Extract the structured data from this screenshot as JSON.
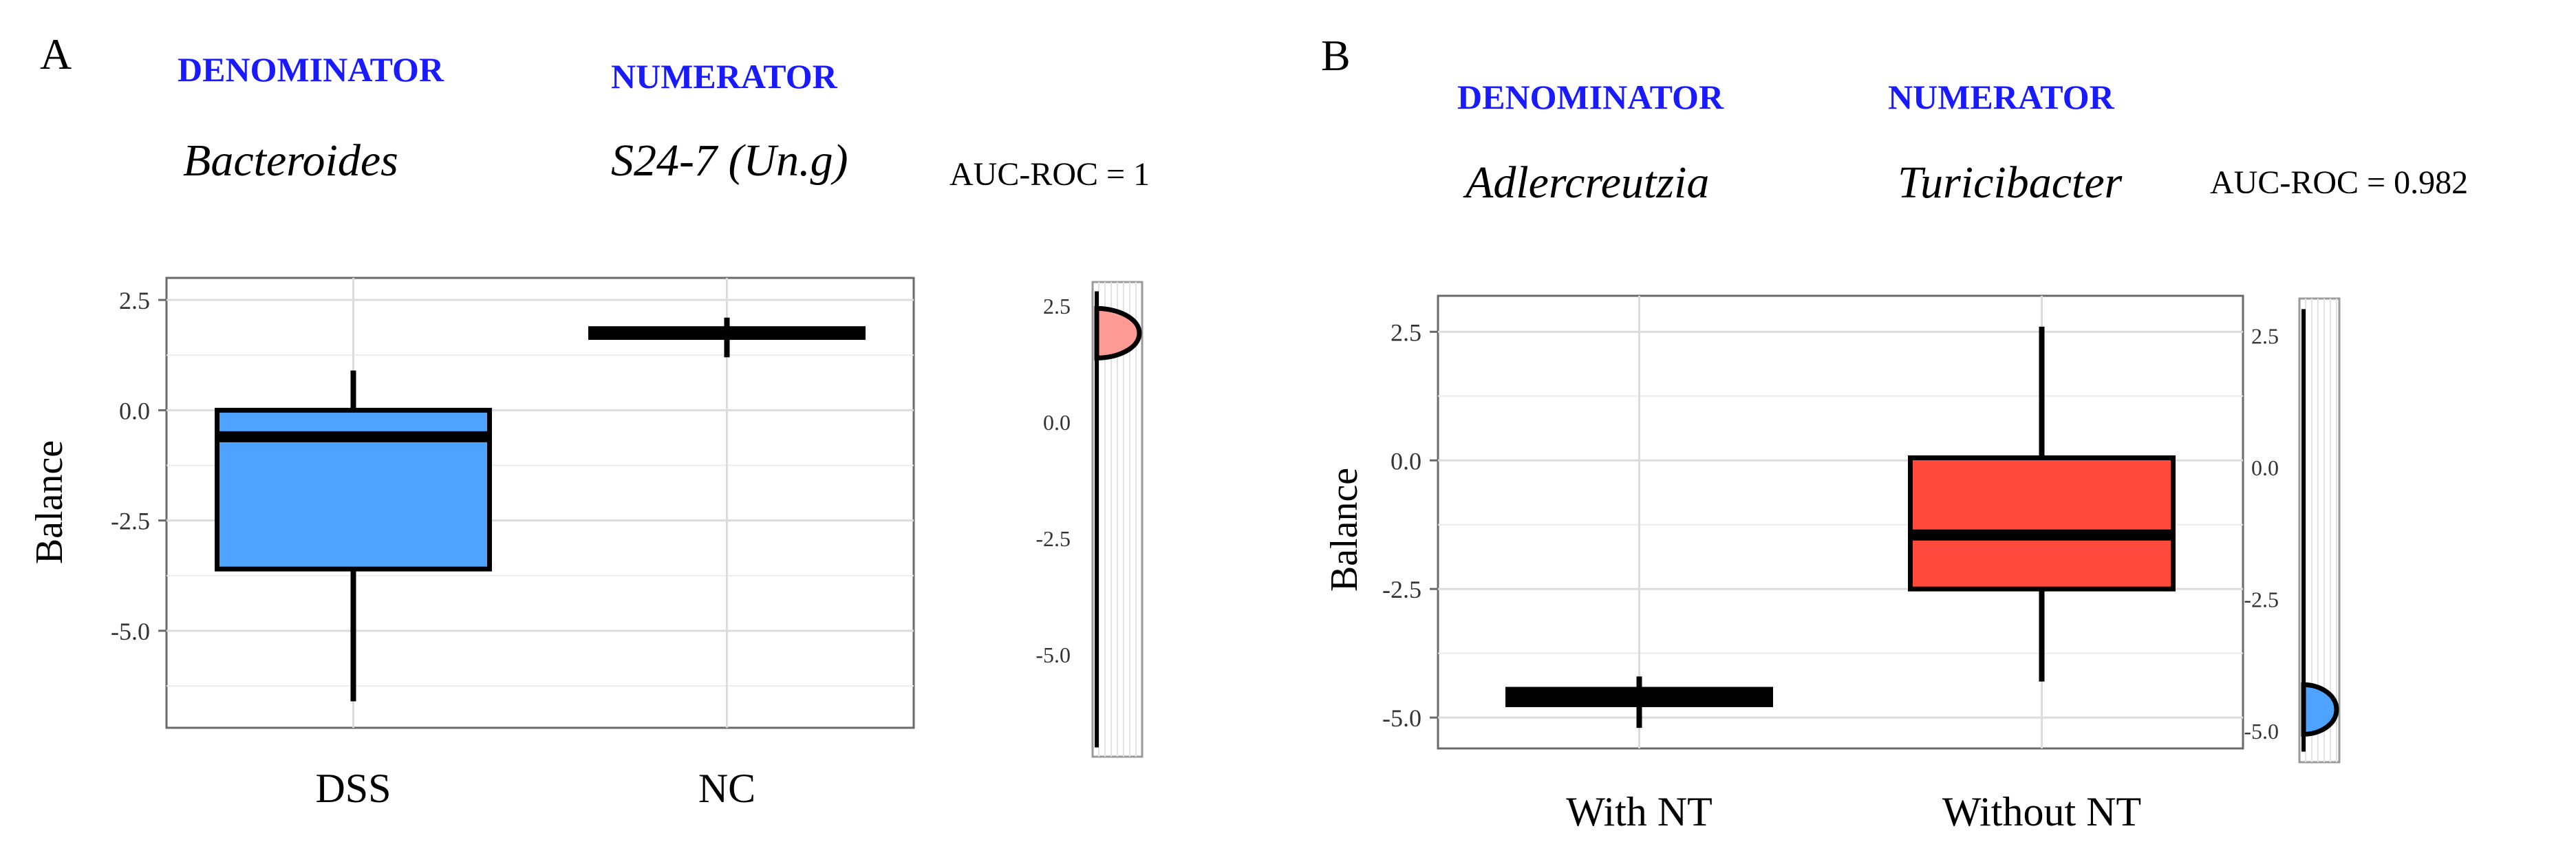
{
  "colors": {
    "dss_box": "#4da3ff",
    "nc_density": "#ff9a94",
    "with_nt_box": "#4da3ff",
    "without_nt_box": "#ff4a3d",
    "header_text": "#1a1aff"
  },
  "panels": [
    {
      "label": "A",
      "denominator_header": "DENOMINATOR",
      "numerator_header": "NUMERATOR",
      "denominator": "Bacteroides",
      "numerator": "S24-7 (Un.g)",
      "auc": "AUC-ROC = 1"
    },
    {
      "label": "B",
      "denominator_header": "DENOMINATOR",
      "numerator_header": "NUMERATOR",
      "denominator": "Adlercreutzia",
      "numerator": "Turicibacter",
      "auc": "AUC-ROC = 0.982"
    }
  ],
  "chart_data": [
    {
      "type": "box",
      "ylabel": "Balance",
      "ylim": [
        -7.2,
        3.0
      ],
      "yticks": [
        "2.5",
        "0.0",
        "-2.5",
        "-5.0"
      ],
      "categories": [
        "DSS",
        "NC"
      ],
      "boxes": [
        {
          "name": "DSS",
          "min": -6.6,
          "q1": -3.6,
          "median": -0.6,
          "q3": 0.0,
          "max": 0.9,
          "color": "#4da3ff"
        },
        {
          "name": "NC",
          "min": 1.2,
          "q1": 1.65,
          "median": 1.75,
          "q3": 1.85,
          "max": 2.1,
          "color": "#000000"
        }
      ],
      "grid": true,
      "marginal_density": {
        "ylim": [
          -7.2,
          3.0
        ],
        "yticks": [
          "2.5",
          "0.0",
          "-2.5",
          "-5.0"
        ],
        "peak": 1.9,
        "color": "#ff9a94"
      }
    },
    {
      "type": "box",
      "ylabel": "Balance",
      "ylim": [
        -5.6,
        3.2
      ],
      "yticks": [
        "2.5",
        "0.0",
        "-2.5",
        "-5.0"
      ],
      "categories": [
        "With NT",
        "Without NT"
      ],
      "boxes": [
        {
          "name": "With NT",
          "min": -5.2,
          "q1": -4.75,
          "median": -4.6,
          "q3": -4.45,
          "max": -4.2,
          "color": "#4da3ff"
        },
        {
          "name": "Without NT",
          "min": -4.3,
          "q1": -2.5,
          "median": -1.45,
          "q3": 0.05,
          "max": 2.6,
          "color": "#ff4a3d"
        }
      ],
      "grid": true,
      "marginal_density": {
        "ylim": [
          -5.6,
          3.2
        ],
        "yticks": [
          "2.5",
          "0.0",
          "-2.5",
          "-5.0"
        ],
        "peak": -4.6,
        "color": "#4da3ff"
      }
    }
  ]
}
